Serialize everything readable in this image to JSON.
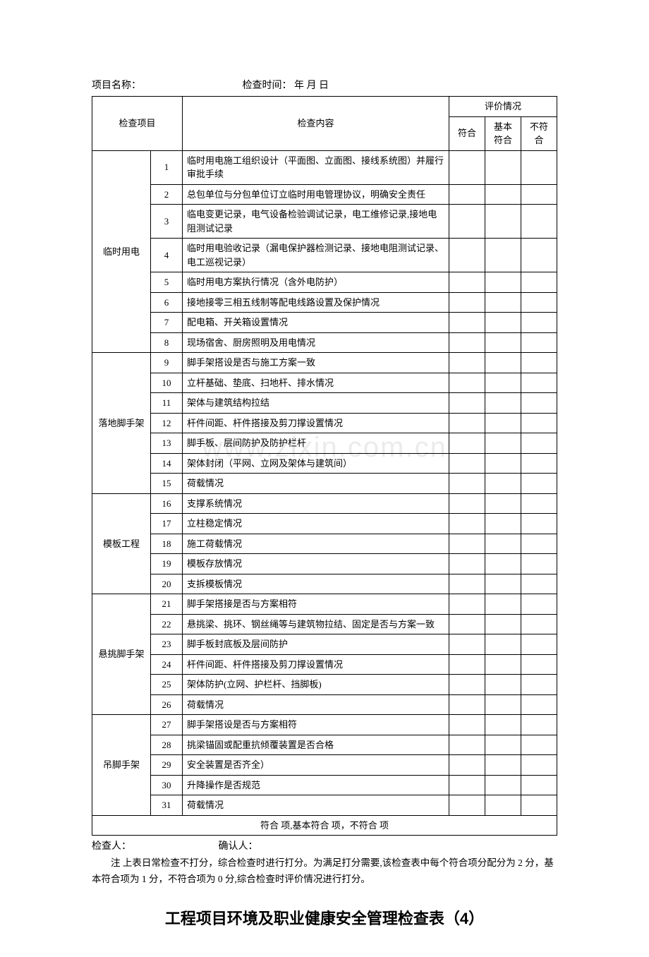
{
  "header": {
    "project_label": "项目名称：",
    "time_label": "检查时间：  年   月   日"
  },
  "table": {
    "head": {
      "check_item": "检查项目",
      "check_content": "检查内容",
      "eval_group": "评价情况",
      "eval_a": "符合",
      "eval_b": "基本符合",
      "eval_c": "不符合"
    },
    "groups": [
      {
        "name": "临时用电",
        "rows": [
          {
            "n": "1",
            "c": "临时用电施工组织设计（平面图、立面图、接线系统图）并履行审批手续"
          },
          {
            "n": "2",
            "c": "总包单位与分包单位订立临时用电管理协议，明确安全责任"
          },
          {
            "n": "3",
            "c": "临电变更记录，电气设备检验调试记录，电工维修记录,接地电阻测试记录"
          },
          {
            "n": "4",
            "c": "临时用电验收记录（漏电保护器检测记录、接地电阻测试记录、电工巡视记录）"
          },
          {
            "n": "5",
            "c": "临时用电方案执行情况（含外电防护）"
          },
          {
            "n": "6",
            "c": "接地接零三相五线制等配电线路设置及保护情况"
          },
          {
            "n": "7",
            "c": "配电箱、开关箱设置情况"
          },
          {
            "n": "8",
            "c": "现场宿舍、厨房照明及用电情况"
          }
        ]
      },
      {
        "name": "落地脚手架",
        "rows": [
          {
            "n": "9",
            "c": "脚手架搭设是否与施工方案一致"
          },
          {
            "n": "10",
            "c": "立杆基础、垫底、扫地杆、排水情况"
          },
          {
            "n": "11",
            "c": "架体与建筑结构拉结"
          },
          {
            "n": "12",
            "c": "杆件间距、杆件搭接及剪刀撑设置情况"
          },
          {
            "n": "13",
            "c": "脚手板、层间防护及防护栏杆"
          },
          {
            "n": "14",
            "c": "架体封闭（平网、立网及架体与建筑间）"
          },
          {
            "n": "15",
            "c": "荷载情况"
          }
        ]
      },
      {
        "name": "模板工程",
        "rows": [
          {
            "n": "16",
            "c": "支撑系统情况"
          },
          {
            "n": "17",
            "c": "立柱稳定情况"
          },
          {
            "n": "18",
            "c": "施工荷载情况"
          },
          {
            "n": "19",
            "c": "模板存放情况"
          },
          {
            "n": "20",
            "c": "支拆模板情况"
          }
        ]
      },
      {
        "name": "悬挑脚手架",
        "rows": [
          {
            "n": "21",
            "c": "脚手架搭接是否与方案相符"
          },
          {
            "n": "22",
            "c": "悬挑梁、挑环、钢丝绳等与建筑物拉结、固定是否与方案一致"
          },
          {
            "n": "23",
            "c": "脚手板封底板及层间防护"
          },
          {
            "n": "24",
            "c": "杆件间距、杆件搭接及剪刀撑设置情况"
          },
          {
            "n": "25",
            "c": "架体防护(立网、护栏杆、挡脚板)"
          },
          {
            "n": "26",
            "c": "荷载情况"
          }
        ]
      },
      {
        "name": "吊脚手架",
        "rows": [
          {
            "n": "27",
            "c": "脚手架搭设是否与方案相符"
          },
          {
            "n": "28",
            "c": "挑梁锚固或配重抗倾覆装置是否合格"
          },
          {
            "n": "29",
            "c": "安全装置是否齐全）"
          },
          {
            "n": "30",
            "c": "升降操作是否规范"
          },
          {
            "n": "31",
            "c": "荷载情况"
          }
        ]
      }
    ],
    "summary": "符合   项,基本符合   项，不符合   项"
  },
  "footer": {
    "checker": "检查人：",
    "confirmer": "确认人："
  },
  "note": "注 上表日常检查不打分，综合检查时进行打分。为满足打分需要,该检查表中每个符合项分配分为 2 分，基本符合项为 1 分，不符合项为 0 分,综合检查时评价情况进行打分。",
  "big_title": "工程项目环境及职业健康安全管理检查表（4）",
  "watermark": "www.zixin.com.cn"
}
